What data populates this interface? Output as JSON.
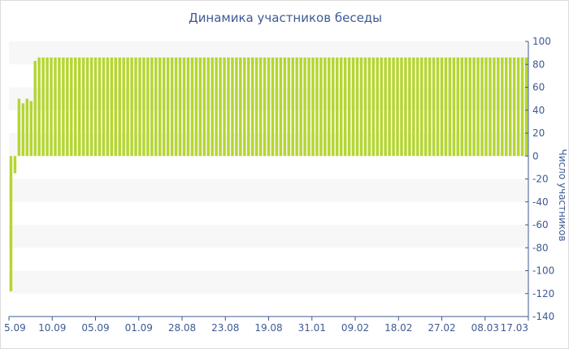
{
  "chart_data": {
    "type": "bar",
    "title": "Динамика участников беседы",
    "xlabel": "",
    "ylabel": "Число участников",
    "ylim": [
      -140,
      100
    ],
    "yticks": [
      100,
      80,
      60,
      40,
      20,
      0,
      -20,
      -40,
      -60,
      -80,
      -100,
      -120,
      -140
    ],
    "y_axis_side": "right",
    "grid": "alternating horizontal bands",
    "legend": "none",
    "x_tick_labels": [
      "5.09",
      "10.09",
      "05.09",
      "01.09",
      "28.08",
      "23.08",
      "19.08",
      "31.01",
      "09.02",
      "18.02",
      "27.02",
      "08.03",
      "17.03"
    ],
    "values": [
      -118,
      -15,
      50,
      46,
      50,
      48,
      83,
      86,
      86,
      86,
      86,
      86,
      86,
      86,
      86,
      86,
      86,
      86,
      86,
      86,
      86,
      86,
      86,
      86,
      86,
      86,
      86,
      86,
      86,
      86,
      86,
      86,
      86,
      86,
      86,
      86,
      86,
      86,
      86,
      86,
      86,
      86,
      86,
      86,
      86,
      86,
      86,
      86,
      86,
      86,
      86,
      86,
      86,
      86,
      86,
      86,
      86,
      86,
      86,
      86,
      86,
      86,
      86,
      86,
      86,
      86,
      86,
      86,
      86,
      86,
      86,
      86,
      86,
      86,
      86,
      86,
      86,
      86,
      86,
      86,
      86,
      86,
      86,
      86,
      86,
      86,
      86,
      86,
      86,
      86,
      86,
      86,
      86,
      86,
      86,
      86,
      86,
      86,
      86,
      86,
      86,
      86,
      86,
      86,
      86,
      86,
      86,
      86,
      86,
      86,
      86,
      86,
      86,
      86,
      86,
      86,
      86,
      86,
      86,
      86,
      86,
      86,
      86,
      86,
      86,
      86,
      86,
      86,
      86
    ],
    "colors": {
      "bar": "#b5d631",
      "band": "#f7f7f7",
      "axis": "#3e5a93",
      "text": "#3e5a93"
    }
  }
}
